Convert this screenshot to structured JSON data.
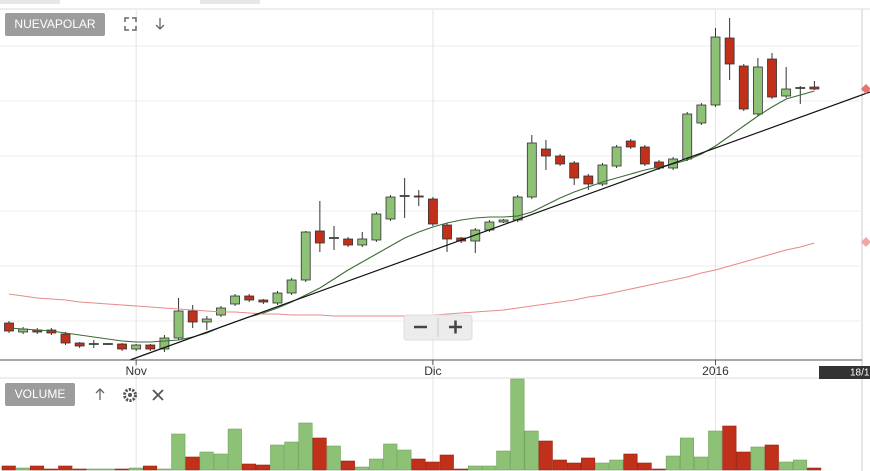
{
  "chart_data": {
    "type": "candlestick",
    "title": "NUEVAPOLAR",
    "volume_title": "VOLUME",
    "cursor_label": "18/1",
    "categories": [
      null,
      null,
      null,
      null,
      null,
      null,
      null,
      null,
      null,
      "Nov",
      null,
      null,
      null,
      null,
      null,
      null,
      null,
      null,
      null,
      null,
      null,
      null,
      null,
      null,
      null,
      null,
      null,
      null,
      null,
      null,
      "Dic",
      null,
      null,
      null,
      null,
      null,
      null,
      null,
      null,
      null,
      null,
      null,
      null,
      null,
      null,
      null,
      null,
      null,
      null,
      null,
      "2016",
      null,
      null,
      null,
      null,
      null,
      null,
      null
    ],
    "open": [
      37,
      28,
      30,
      30,
      26,
      17,
      16,
      16,
      16,
      11,
      15,
      11,
      22,
      49,
      38,
      45,
      56,
      64,
      60,
      57,
      67,
      80,
      129,
      122,
      121,
      115,
      120,
      141,
      164,
      164,
      161,
      135,
      122,
      119,
      130,
      138,
      140,
      163,
      211,
      204,
      197,
      184,
      176,
      194,
      219,
      213,
      198,
      192,
      201,
      237,
      255,
      322,
      294,
      246,
      301,
      264,
      272,
      273
    ],
    "high": [
      39,
      33,
      32,
      32,
      28,
      18,
      20,
      17,
      17,
      16,
      16,
      25,
      62,
      55,
      44,
      54,
      66,
      66,
      61,
      69,
      82,
      129,
      159,
      134,
      123,
      128,
      148,
      165,
      182,
      170,
      163,
      137,
      123,
      132,
      140,
      141,
      165,
      225,
      220,
      206,
      199,
      186,
      197,
      215,
      221,
      215,
      200,
      203,
      248,
      257,
      332,
      342,
      296,
      302,
      307,
      293,
      274,
      279
    ],
    "low": [
      27,
      26,
      26,
      25,
      15,
      12,
      12,
      15,
      9,
      9,
      9,
      8,
      20,
      32,
      30,
      43,
      54,
      58,
      56,
      55,
      65,
      78,
      108,
      110,
      113,
      113,
      118,
      139,
      142,
      154,
      134,
      108,
      117,
      107,
      128,
      137,
      138,
      161,
      190,
      194,
      175,
      170,
      174,
      192,
      211,
      194,
      190,
      190,
      199,
      235,
      253,
      280,
      249,
      244,
      261,
      262,
      256,
      270
    ],
    "close": [
      29,
      31,
      28,
      27,
      17,
      14,
      16.5,
      16.5,
      11,
      15,
      11,
      22,
      49,
      38,
      41,
      52,
      64,
      60,
      58,
      67,
      80,
      128,
      117,
      122.5,
      115,
      121,
      146,
      163,
      164.5,
      163.5,
      136,
      121,
      119,
      130,
      138,
      140,
      163,
      217,
      204,
      196,
      182,
      176,
      195,
      213,
      213,
      196,
      192,
      201,
      246,
      255,
      323,
      296,
      251,
      293,
      263,
      271,
      272.5,
      271
    ],
    "volume": [
      4,
      2,
      4,
      1,
      4,
      1,
      1,
      1,
      1,
      2,
      4,
      1,
      36,
      13,
      18,
      16,
      41,
      6,
      5,
      25,
      28,
      47,
      32,
      24,
      9,
      3,
      11,
      26,
      20,
      11,
      8,
      15,
      1,
      4,
      4,
      19,
      91,
      39,
      29,
      10,
      7,
      12,
      7,
      10,
      16,
      7,
      1,
      14,
      32,
      13,
      39,
      44,
      18,
      23,
      25,
      8,
      10,
      2
    ],
    "up_color": "#8cc176",
    "down_color": "#c0301a",
    "lines": [
      {
        "color": "#3d6b35",
        "values": [
          32,
          31,
          30,
          29,
          27,
          25,
          23,
          21,
          19,
          18,
          18,
          19,
          20,
          23,
          27,
          33,
          38,
          43,
          47,
          52,
          58,
          65,
          72,
          81,
          90,
          98,
          106,
          114,
          122,
          128,
          133,
          137,
          140,
          142,
          143,
          143,
          144,
          148,
          155,
          162,
          168,
          173,
          178,
          182,
          186,
          190,
          193,
          196,
          200,
          206,
          214,
          224,
          234,
          244,
          253,
          261,
          265,
          269
        ]
      },
      {
        "color": "#e88a88",
        "values": [
          66,
          64,
          62,
          61,
          60,
          58,
          57,
          56,
          55,
          54,
          53,
          52,
          51,
          50,
          49,
          48,
          48,
          47,
          46,
          46,
          45,
          45,
          45,
          44,
          44,
          44,
          44,
          44,
          44,
          45,
          45,
          46,
          47,
          48,
          49,
          50,
          52,
          54,
          56,
          58,
          60,
          63,
          65,
          68,
          71,
          74,
          77,
          80,
          83,
          87,
          90,
          94,
          98,
          102,
          106,
          110,
          113,
          117
        ]
      }
    ],
    "ylim": [
      0,
      350
    ],
    "volume_ylim": [
      0,
      100
    ],
    "y_gridlines": [
      39,
      94,
      149,
      204,
      259,
      314
    ],
    "grid": true
  }
}
